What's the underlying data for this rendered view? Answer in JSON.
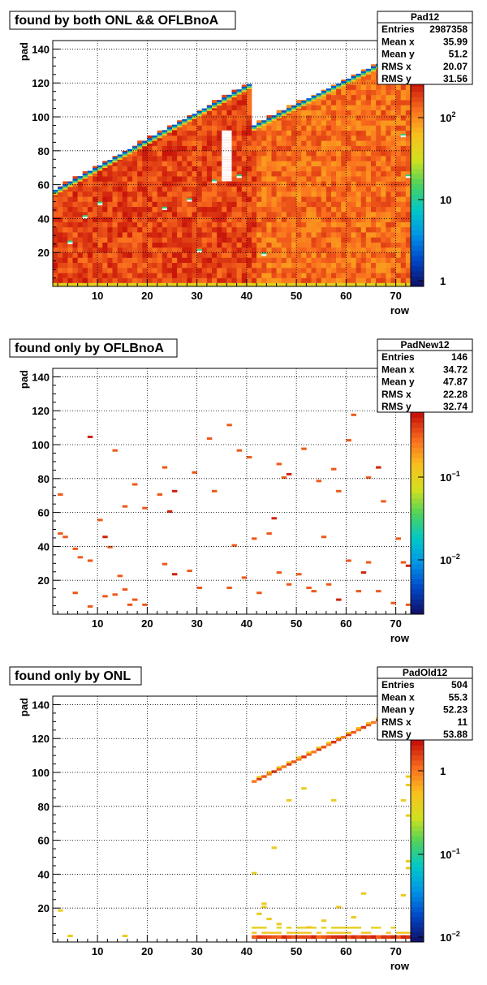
{
  "chart_data": [
    {
      "type": "heatmap",
      "title": "found by both ONL && OFLBnoA",
      "xlabel": "row",
      "ylabel": "pad",
      "xlim": [
        1,
        73
      ],
      "ylim": [
        0,
        145
      ],
      "x_ticks": [
        "10",
        "20",
        "30",
        "40",
        "50",
        "60",
        "70"
      ],
      "y_ticks": [
        "20",
        "40",
        "60",
        "80",
        "100",
        "120",
        "140"
      ],
      "z_scale": "log",
      "z_ticks": [
        {
          "base": "1",
          "exp": ""
        },
        {
          "base": "10",
          "exp": ""
        },
        {
          "base": "10",
          "exp": "2"
        }
      ],
      "stats": {
        "name": "Pad12",
        "rows": [
          {
            "label": "Entries",
            "value": "2987358"
          },
          {
            "label": "Mean x",
            "value": "35.99"
          },
          {
            "label": "Mean y",
            "value": "51.2"
          },
          {
            "label": "RMS x",
            "value": "20.07"
          },
          {
            "label": "RMS y",
            "value": "31.56"
          }
        ]
      }
    },
    {
      "type": "heatmap",
      "title": "found only by OFLBnoA",
      "xlabel": "row",
      "ylabel": "pad",
      "xlim": [
        1,
        73
      ],
      "ylim": [
        0,
        145
      ],
      "x_ticks": [
        "10",
        "20",
        "30",
        "40",
        "50",
        "60",
        "70"
      ],
      "y_ticks": [
        "20",
        "40",
        "60",
        "80",
        "100",
        "120",
        "140"
      ],
      "z_scale": "log",
      "z_ticks": [
        {
          "base": "10",
          "exp": "−2"
        },
        {
          "base": "10",
          "exp": "−1"
        }
      ],
      "stats": {
        "name": "PadNew12",
        "rows": [
          {
            "label": "Entries",
            "value": "146"
          },
          {
            "label": "Mean x",
            "value": "34.72"
          },
          {
            "label": "Mean y",
            "value": "47.87"
          },
          {
            "label": "RMS x",
            "value": "22.28"
          },
          {
            "label": "RMS y",
            "value": "32.74"
          }
        ]
      }
    },
    {
      "type": "heatmap",
      "title": "found only by ONL",
      "xlabel": "row",
      "ylabel": "pad",
      "xlim": [
        1,
        73
      ],
      "ylim": [
        0,
        145
      ],
      "x_ticks": [
        "10",
        "20",
        "30",
        "40",
        "50",
        "60",
        "70"
      ],
      "y_ticks": [
        "20",
        "40",
        "60",
        "80",
        "100",
        "120",
        "140"
      ],
      "z_scale": "log",
      "z_ticks": [
        {
          "base": "10",
          "exp": "−2"
        },
        {
          "base": "10",
          "exp": "−1"
        },
        {
          "base": "1",
          "exp": ""
        }
      ],
      "stats": {
        "name": "PadOld12",
        "rows": [
          {
            "label": "Entries",
            "value": "504"
          },
          {
            "label": "Mean x",
            "value": "55.3"
          },
          {
            "label": "Mean y",
            "value": "52.23"
          },
          {
            "label": "RMS x",
            "value": "11"
          },
          {
            "label": "RMS y",
            "value": "53.88"
          }
        ]
      }
    }
  ]
}
